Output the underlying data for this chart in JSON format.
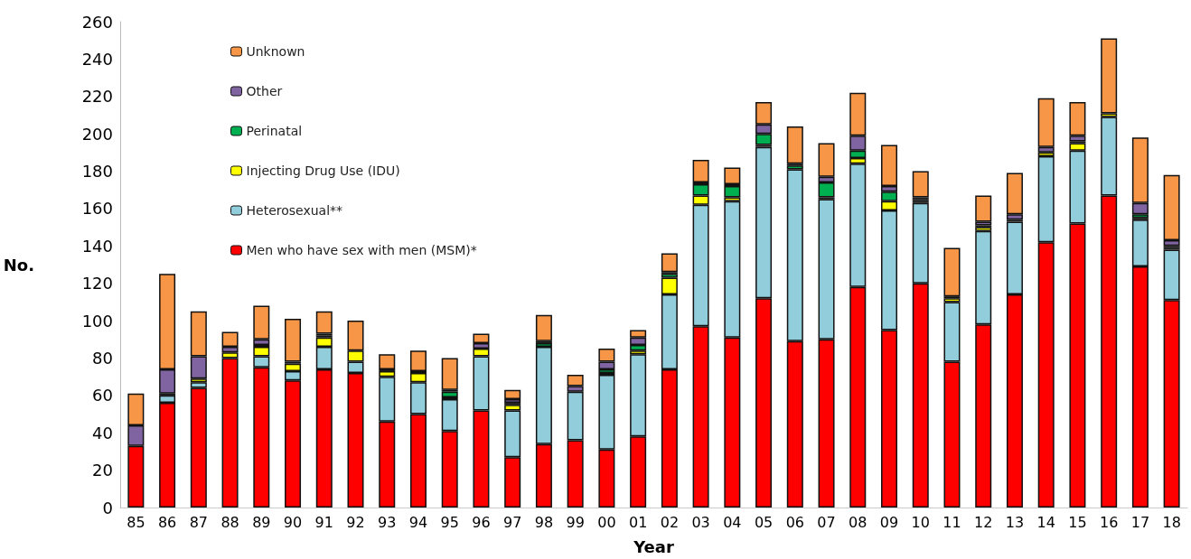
{
  "chart_data": {
    "type": "bar",
    "stacked": true,
    "xlabel": "Year",
    "ylabel": "No.",
    "ylim": [
      0,
      260
    ],
    "yticks": [
      0,
      20,
      40,
      60,
      80,
      100,
      120,
      140,
      160,
      180,
      200,
      220,
      240,
      260
    ],
    "grid": false,
    "legend": "top left",
    "categories": [
      "85",
      "86",
      "87",
      "88",
      "89",
      "90",
      "91",
      "92",
      "93",
      "94",
      "95",
      "96",
      "97",
      "98",
      "99",
      "00",
      "01",
      "02",
      "03",
      "04",
      "05",
      "06",
      "07",
      "08",
      "09",
      "10",
      "11",
      "12",
      "13",
      "14",
      "15",
      "16",
      "17",
      "18"
    ],
    "series": [
      {
        "name": "Men who have sex with men (MSM)*",
        "color": "#ff0000",
        "values": [
          33,
          56,
          64,
          80,
          75,
          68,
          74,
          72,
          46,
          50,
          41,
          52,
          27,
          34,
          36,
          31,
          38,
          74,
          97,
          91,
          112,
          89,
          90,
          118,
          95,
          120,
          78,
          98,
          114,
          142,
          152,
          167,
          129,
          111
        ]
      },
      {
        "name": "Heterosexual**",
        "color": "#92cddc",
        "values": [
          0,
          4,
          3,
          0,
          6,
          5,
          12,
          6,
          24,
          17,
          17,
          29,
          25,
          52,
          26,
          40,
          44,
          40,
          65,
          73,
          81,
          92,
          75,
          66,
          64,
          43,
          32,
          50,
          39,
          46,
          39,
          42,
          25,
          27
        ]
      },
      {
        "name": "Injecting Drug Use (IDU)",
        "color": "#ffff00",
        "values": [
          0,
          1,
          2,
          3,
          5,
          4,
          5,
          6,
          3,
          5,
          1,
          4,
          3,
          0,
          0,
          1,
          2,
          9,
          5,
          2,
          1,
          0,
          1,
          3,
          5,
          1,
          2,
          2,
          1,
          2,
          4,
          2,
          1,
          1
        ]
      },
      {
        "name": "Perinatal",
        "color": "#00b050",
        "values": [
          0,
          0,
          0,
          0,
          1,
          0,
          1,
          0,
          0,
          0,
          3,
          0,
          1,
          2,
          0,
          2,
          3,
          2,
          6,
          6,
          6,
          2,
          8,
          4,
          5,
          1,
          1,
          1,
          0,
          0,
          1,
          0,
          2,
          1
        ]
      },
      {
        "name": "Other",
        "color": "#8064a2",
        "values": [
          11,
          13,
          12,
          3,
          3,
          1,
          1,
          0,
          1,
          1,
          1,
          3,
          2,
          1,
          3,
          4,
          4,
          1,
          1,
          1,
          5,
          1,
          3,
          8,
          3,
          1,
          0,
          2,
          3,
          3,
          3,
          0,
          6,
          3
        ]
      },
      {
        "name": "Unknown",
        "color": "#f79646",
        "values": [
          17,
          51,
          24,
          8,
          18,
          23,
          12,
          16,
          8,
          11,
          17,
          5,
          5,
          14,
          6,
          7,
          4,
          10,
          12,
          9,
          12,
          20,
          18,
          23,
          22,
          14,
          26,
          14,
          22,
          26,
          18,
          40,
          35,
          35
        ]
      }
    ]
  }
}
